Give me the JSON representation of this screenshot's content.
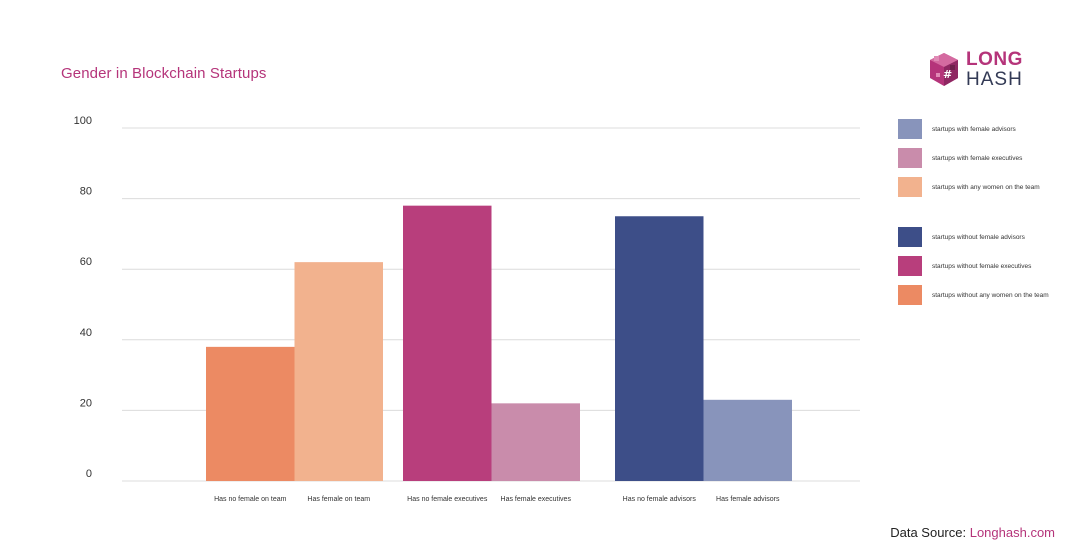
{
  "title": "Gender in Blockchain Startups",
  "logo": {
    "line1": "LONG",
    "line2": "HASH"
  },
  "source": {
    "label": "Data Source:",
    "link": "Longhash.com"
  },
  "chart_data": {
    "type": "bar",
    "title": "Gender in Blockchain Startups",
    "ylim": [
      0,
      100
    ],
    "yticks": [
      0,
      20,
      40,
      60,
      80,
      100
    ],
    "grid": true,
    "legend_position": "right",
    "groups": [
      {
        "bars": [
          {
            "label": "Has no female on team",
            "value": 38,
            "series": "startups without any women on the team",
            "color": "#ec8a63"
          },
          {
            "label": "Has female on team",
            "value": 62,
            "series": "startups with any women on the team",
            "color": "#f2b28e"
          }
        ]
      },
      {
        "bars": [
          {
            "label": "Has no female executives",
            "value": 78,
            "series": "startups without female executives",
            "color": "#b83e7c"
          },
          {
            "label": "Has female executives",
            "value": 22,
            "series": "startups with female executives",
            "color": "#c98cab"
          }
        ]
      },
      {
        "bars": [
          {
            "label": "Has no female advisors",
            "value": 75,
            "series": "startups without female advisors",
            "color": "#3d4e88"
          },
          {
            "label": "Has female advisors",
            "value": 23,
            "series": "startups with female advisors",
            "color": "#8894bb"
          }
        ]
      }
    ],
    "legend": [
      {
        "label": "startups with female advisors",
        "color": "#8894bb"
      },
      {
        "label": "startups with female executives",
        "color": "#c98cab"
      },
      {
        "label": "startups with any women on the team",
        "color": "#f2b28e"
      },
      {
        "label": "startups without female advisors",
        "color": "#3d4e88"
      },
      {
        "label": "startups without female executives",
        "color": "#b83e7c"
      },
      {
        "label": "startups without any women on the team",
        "color": "#ec8a63"
      }
    ]
  }
}
